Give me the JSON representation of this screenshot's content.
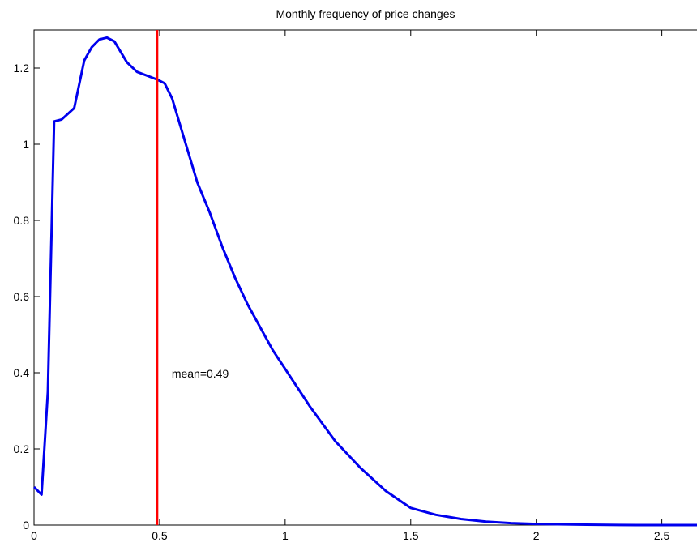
{
  "chart_data": {
    "type": "line",
    "title": "Monthly frequency of price changes",
    "annotation": "mean=0.49",
    "mean_line": {
      "x": 0.49,
      "color": "#ff0000"
    },
    "series": [
      {
        "color": "#0000ee",
        "x": [
          0,
          0.03,
          0.055,
          0.08,
          0.11,
          0.16,
          0.2,
          0.23,
          0.26,
          0.29,
          0.32,
          0.37,
          0.41,
          0.45,
          0.49,
          0.52,
          0.55,
          0.6,
          0.65,
          0.7,
          0.75,
          0.8,
          0.85,
          0.9,
          0.95,
          1.0,
          1.1,
          1.2,
          1.3,
          1.4,
          1.5,
          1.6,
          1.7,
          1.8,
          1.9,
          2.0,
          2.2,
          2.4,
          2.64
        ],
        "values": [
          0.1,
          0.08,
          0.35,
          1.06,
          1.065,
          1.095,
          1.22,
          1.255,
          1.275,
          1.28,
          1.27,
          1.215,
          1.19,
          1.18,
          1.17,
          1.16,
          1.12,
          1.01,
          0.9,
          0.82,
          0.73,
          0.65,
          0.58,
          0.52,
          0.46,
          0.41,
          0.31,
          0.22,
          0.15,
          0.09,
          0.045,
          0.027,
          0.016,
          0.009,
          0.005,
          0.003,
          0.001,
          0,
          0
        ]
      }
    ],
    "xlim": [
      0,
      2.64
    ],
    "ylim": [
      0,
      1.3
    ],
    "xticks": [
      0,
      0.5,
      1,
      1.5,
      2,
      2.5
    ],
    "yticks": [
      0,
      0.2,
      0.4,
      0.6,
      0.8,
      1,
      1.2
    ]
  }
}
